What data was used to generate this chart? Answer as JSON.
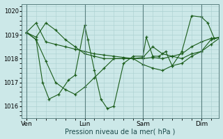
{
  "xlabel": "Pression niveau de la mer( hPa )",
  "bg_color": "#cce8e8",
  "grid_color": "#aad0d0",
  "line_color": "#1a5c1a",
  "ylim": [
    1015.5,
    1020.3
  ],
  "yticks": [
    1016,
    1017,
    1018,
    1019,
    1020
  ],
  "xtick_labels": [
    "Ven",
    "Lun",
    "Sam",
    "Dim"
  ],
  "xtick_positions": [
    0,
    36,
    72,
    108
  ],
  "vline_positions": [
    0,
    36,
    72,
    108
  ],
  "xlim": [
    -3,
    119
  ],
  "s1_x": [
    0,
    6,
    12,
    18,
    24,
    30,
    36,
    42,
    48,
    54,
    60,
    66,
    72,
    78,
    84,
    90,
    96,
    102,
    108,
    114,
    120
  ],
  "s1_y": [
    1019.1,
    1019.5,
    1018.7,
    1018.6,
    1018.5,
    1018.4,
    1018.3,
    1018.2,
    1018.15,
    1018.1,
    1018.05,
    1018.0,
    1018.0,
    1018.05,
    1018.0,
    1018.1,
    1018.2,
    1018.5,
    1018.7,
    1018.85,
    1018.9
  ],
  "s2_x": [
    0,
    6,
    12,
    18,
    24,
    30,
    36,
    42,
    48,
    54,
    60,
    66,
    72,
    78,
    84,
    90,
    96,
    102,
    108,
    114,
    120
  ],
  "s2_y": [
    1019.1,
    1018.8,
    1017.9,
    1017.0,
    1016.7,
    1016.5,
    1016.8,
    1017.2,
    1017.6,
    1018.0,
    1018.0,
    1018.0,
    1017.75,
    1017.6,
    1017.5,
    1017.7,
    1017.8,
    1018.1,
    1018.3,
    1018.6,
    1018.9
  ],
  "s3_x": [
    0,
    6,
    12,
    18,
    24,
    30,
    36,
    42,
    48,
    54,
    60,
    66,
    72,
    78,
    84,
    90,
    96,
    102,
    108,
    114,
    120
  ],
  "s3_y": [
    1019.1,
    1018.9,
    1019.5,
    1019.2,
    1018.8,
    1018.5,
    1018.2,
    1018.1,
    1018.0,
    1018.0,
    1018.0,
    1018.0,
    1018.05,
    1018.5,
    1018.2,
    1018.1,
    1018.0,
    1018.2,
    1018.3,
    1018.8,
    1018.9
  ],
  "s4_x": [
    0,
    6,
    10,
    14,
    20,
    26,
    30,
    36,
    38,
    42,
    46,
    50,
    54,
    60,
    66,
    72,
    74,
    78,
    82,
    86,
    90,
    96,
    102,
    108,
    112,
    116,
    120
  ],
  "s4_y": [
    1019.1,
    1018.8,
    1017.0,
    1016.3,
    1016.5,
    1017.1,
    1017.3,
    1019.4,
    1018.8,
    1017.5,
    1016.3,
    1015.9,
    1016.0,
    1017.8,
    1018.1,
    1018.1,
    1018.9,
    1018.1,
    1018.1,
    1018.3,
    1017.7,
    1018.3,
    1019.8,
    1019.75,
    1019.5,
    1018.85,
    1018.9
  ]
}
